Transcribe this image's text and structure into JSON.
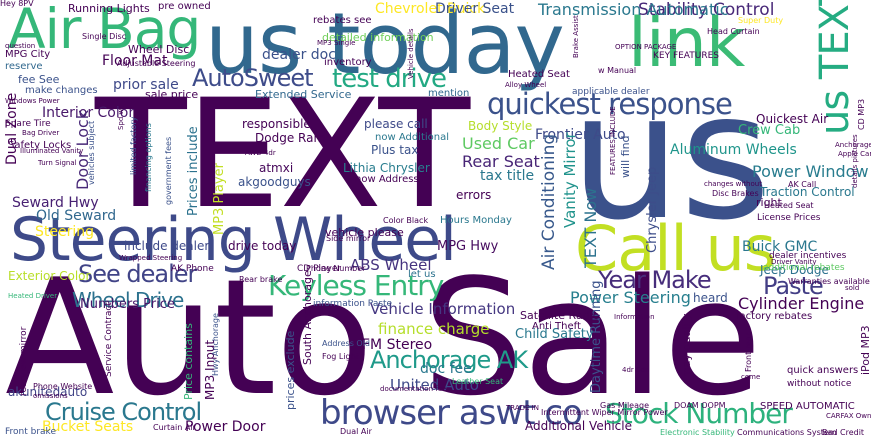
{
  "cloud": {
    "words": [
      {
        "text": "Auto Sale",
        "color": "#440154"
      },
      {
        "text": "TEXT",
        "color": "#440154"
      },
      {
        "text": "us",
        "color": "#3b518b"
      },
      {
        "text": "us today",
        "color": "#31688e"
      },
      {
        "text": "Steering Wheel",
        "color": "#3e4a89"
      },
      {
        "text": "Call us",
        "color": "#c2df23"
      },
      {
        "text": "link",
        "color": "#3bbb75"
      },
      {
        "text": "Air Bag",
        "color": "#35b779"
      },
      {
        "text": "us TEXT",
        "color": "#25ac82"
      },
      {
        "text": "browser aswt co",
        "color": "#3e4989"
      },
      {
        "text": "Cruise Control",
        "color": "#2a788e"
      },
      {
        "text": "quickest response",
        "color": "#3b528b"
      },
      {
        "text": "Keyless Entry",
        "color": "#35b779"
      },
      {
        "text": "Stock Number",
        "color": "#2db27d"
      },
      {
        "text": "AutoSweet",
        "color": "#3e4c8a"
      },
      {
        "text": "test drive",
        "color": "#23a983"
      },
      {
        "text": "See dealer",
        "color": "#414487"
      },
      {
        "text": "Anchorage AK",
        "color": "#1f9a8a"
      },
      {
        "text": "Paste",
        "color": "#433e85"
      },
      {
        "text": "Year Make",
        "color": "#472d7b"
      },
      {
        "text": "Wheel Drive",
        "color": "#2c728e"
      },
      {
        "text": "Chevrolet Buick",
        "color": "#fde725"
      },
      {
        "text": "Stability Control",
        "color": "#482878"
      },
      {
        "text": "Transmission Automatic",
        "color": "#2a788e"
      },
      {
        "text": "Driver Seat",
        "color": "#3b528b"
      },
      {
        "text": "ABS Wheel",
        "color": "#46337f"
      },
      {
        "text": "Vehicle Information",
        "color": "#453781"
      },
      {
        "text": "Power Steering",
        "color": "#277f8e"
      },
      {
        "text": "Cylinder Engine",
        "color": "#440154"
      },
      {
        "text": "Frontier Auto",
        "color": "#3e4a89"
      },
      {
        "text": "Aluminum Wheels",
        "color": "#1f958b"
      },
      {
        "text": "Power Window",
        "color": "#287c8e"
      },
      {
        "text": "Used Car",
        "color": "#5ec962"
      },
      {
        "text": "Rear Seat",
        "color": "#482576"
      },
      {
        "text": "Buick GMC",
        "color": "#2a778e"
      },
      {
        "text": "akunitedauto",
        "color": "#414487"
      },
      {
        "text": "Steering",
        "color": "#fde725"
      },
      {
        "text": "Interior Color",
        "color": "#48186a"
      },
      {
        "text": "Old Seward",
        "color": "#31688e"
      },
      {
        "text": "Seward Hwy",
        "color": "#482173"
      },
      {
        "text": "Dual Zone",
        "color": "#440154"
      },
      {
        "text": "Door Lock",
        "color": "#482878"
      },
      {
        "text": "TEXT Now",
        "color": "#2c728e"
      },
      {
        "text": "Air Conditioning",
        "color": "#38598c"
      },
      {
        "text": "Vanity Mirror",
        "color": "#20938c"
      },
      {
        "text": "finance charge",
        "color": "#b5de2b"
      },
      {
        "text": "FM Stereo",
        "color": "#440154"
      },
      {
        "text": "United Auto",
        "color": "#3e4a89"
      },
      {
        "text": "doc fee",
        "color": "#2a788e"
      },
      {
        "text": "Bucket Seats",
        "color": "#fde725"
      },
      {
        "text": "Power Door",
        "color": "#440154"
      },
      {
        "text": "dealer doc",
        "color": "#3b528b"
      },
      {
        "text": "Floor Mat",
        "color": "#440154"
      },
      {
        "text": "prior sale",
        "color": "#3e4989"
      },
      {
        "text": "tax title",
        "color": "#2a788e"
      },
      {
        "text": "MPG Hwy",
        "color": "#460b5e"
      },
      {
        "text": "Chrysler Jeep",
        "color": "#3d4d8a"
      },
      {
        "text": "Daytime Running",
        "color": "#3b528b"
      },
      {
        "text": "Child Safety",
        "color": "#2a788e"
      },
      {
        "text": "Numbers Price",
        "color": "#48186a"
      },
      {
        "text": "Exterior Color",
        "color": "#b8de29"
      },
      {
        "text": "Jeep Dodge",
        "color": "#2c728e"
      },
      {
        "text": "heard",
        "color": "#3b528b"
      },
      {
        "text": "Crew Cab",
        "color": "#35b779"
      },
      {
        "text": "responsible",
        "color": "#440154"
      },
      {
        "text": "Dodge Ram",
        "color": "#440154"
      },
      {
        "text": "please call",
        "color": "#3e4a89"
      },
      {
        "text": "atmxi",
        "color": "#46075a"
      },
      {
        "text": "akgoodguys",
        "color": "#3b528b"
      },
      {
        "text": "drive today",
        "color": "#440154"
      },
      {
        "text": "include dealer",
        "color": "#3e4989"
      },
      {
        "text": "Prices include",
        "color": "#2c728e"
      },
      {
        "text": "MP3 Player",
        "color": "#c2df23"
      },
      {
        "text": "Lithia Chrysler",
        "color": "#287d8e"
      },
      {
        "text": "Plus tax",
        "color": "#3b528b"
      },
      {
        "text": "Body Style",
        "color": "#b5de2b"
      },
      {
        "text": "sale price",
        "color": "#440154"
      },
      {
        "text": "Extended Service",
        "color": "#31688e"
      },
      {
        "text": "detailed information",
        "color": "#6ece58"
      },
      {
        "text": "inventory",
        "color": "#440154"
      },
      {
        "text": "rebates see",
        "color": "#440154"
      },
      {
        "text": "pre owned",
        "color": "#440154"
      },
      {
        "text": "Running Lights",
        "color": "#440154"
      },
      {
        "text": "Wheel Disc",
        "color": "#440154"
      },
      {
        "text": "fee See",
        "color": "#3b528b"
      },
      {
        "text": "reserve",
        "color": "#31688e"
      },
      {
        "text": "make changes",
        "color": "#3b528b"
      },
      {
        "text": "MPG City",
        "color": "#440154"
      },
      {
        "text": "Safety Locks",
        "color": "#440154"
      },
      {
        "text": "Spare Tire",
        "color": "#440154"
      },
      {
        "text": "License Prices",
        "color": "#440154"
      },
      {
        "text": "Heated Seat",
        "color": "#440154"
      },
      {
        "text": "mention",
        "color": "#31688e"
      },
      {
        "text": "applicable dealer",
        "color": "#3b528b"
      },
      {
        "text": "Quickest Air",
        "color": "#440154"
      },
      {
        "text": "will find",
        "color": "#3b528b"
      },
      {
        "text": "errors",
        "color": "#440154"
      },
      {
        "text": "vehicle please",
        "color": "#440154"
      },
      {
        "text": "now Additional",
        "color": "#2a788e"
      },
      {
        "text": "Hours Monday",
        "color": "#2a788e"
      },
      {
        "text": "now Address",
        "color": "#440154"
      },
      {
        "text": "CD Player",
        "color": "#440154"
      },
      {
        "text": "AK Phone",
        "color": "#440154"
      },
      {
        "text": "let us",
        "color": "#2c728e"
      },
      {
        "text": "Satellite Radio",
        "color": "#440154"
      },
      {
        "text": "factory rebates",
        "color": "#440154"
      },
      {
        "text": "may qualify",
        "color": "#440154"
      },
      {
        "text": "Traction Control",
        "color": "#2a788e"
      },
      {
        "text": "right",
        "color": "#440154"
      },
      {
        "text": "additional rebates",
        "color": "#5ec962"
      },
      {
        "text": "dealer incentives",
        "color": "#440154"
      },
      {
        "text": "iPod MP3",
        "color": "#440154"
      },
      {
        "text": "Additional Vehicle",
        "color": "#440154"
      },
      {
        "text": "Electronic Stability",
        "color": "#35b779"
      },
      {
        "text": "Communications System",
        "color": "#440154"
      },
      {
        "text": "Bad Credit",
        "color": "#440154"
      },
      {
        "text": "DOAM OOPM",
        "color": "#440154"
      },
      {
        "text": "SPEED AUTOMATIC",
        "color": "#440154"
      },
      {
        "text": "without notice",
        "color": "#440154"
      },
      {
        "text": "quick answers",
        "color": "#440154"
      },
      {
        "text": "MP3 Input",
        "color": "#440154"
      },
      {
        "text": "Price contains",
        "color": "#35b779"
      },
      {
        "text": "prices exclude",
        "color": "#3b528b"
      },
      {
        "text": "South Anchorage",
        "color": "#440154"
      },
      {
        "text": "information Paste",
        "color": "#3b528b"
      },
      {
        "text": "Address Old",
        "color": "#3b528b"
      },
      {
        "text": "Fog Light",
        "color": "#440154"
      },
      {
        "text": "Anti Theft",
        "color": "#440154"
      },
      {
        "text": "Leather Seat",
        "color": "#35b779"
      },
      {
        "text": "Phone Website",
        "color": "#440154"
      },
      {
        "text": "Front brake",
        "color": "#3b528b"
      },
      {
        "text": "Dual Air",
        "color": "#440154"
      },
      {
        "text": "Intermittent Wiper Mirror Power",
        "color": "#440154"
      },
      {
        "text": "Gas Mileage",
        "color": "#440154"
      },
      {
        "text": "rearview mirror",
        "color": "#440154"
      },
      {
        "text": "Service Contract",
        "color": "#440154"
      },
      {
        "text": "Hwy Anchorage",
        "color": "#3b528b"
      },
      {
        "text": "Curtain Air",
        "color": "#440154"
      },
      {
        "text": "Single Disc",
        "color": "#440154"
      },
      {
        "text": "Super Duty",
        "color": "#fde725"
      },
      {
        "text": "Head Curtain",
        "color": "#440154"
      },
      {
        "text": "KEY FEATURES",
        "color": "#440154"
      },
      {
        "text": "AK Call",
        "color": "#440154"
      },
      {
        "text": "Warranties available",
        "color": "#440154"
      },
      {
        "text": "Phone Number",
        "color": "#440154"
      },
      {
        "text": "Side mirror",
        "color": "#440154"
      },
      {
        "text": "Rear brake",
        "color": "#440154"
      },
      {
        "text": "Wrapped Steering",
        "color": "#440154"
      },
      {
        "text": "Heated Driver",
        "color": "#35b779"
      },
      {
        "text": "Color Black",
        "color": "#440154"
      },
      {
        "text": "Disc Brakes",
        "color": "#440154"
      },
      {
        "text": "Driver Vanity",
        "color": "#440154"
      },
      {
        "text": "Heated Seat",
        "color": "#440154"
      },
      {
        "text": "Anchorage Alaska",
        "color": "#440154"
      },
      {
        "text": "Apple CarPlay",
        "color": "#440154"
      },
      {
        "text": "AWD 4dr",
        "color": "#440154"
      },
      {
        "text": "MP3 Single",
        "color": "#440154"
      },
      {
        "text": "Alloy Wheel",
        "color": "#440154"
      },
      {
        "text": "OPTION PACKAGE",
        "color": "#440154"
      },
      {
        "text": "w Manual",
        "color": "#440154"
      },
      {
        "text": "Bag Driver",
        "color": "#440154"
      },
      {
        "text": "Windows Power",
        "color": "#440154"
      },
      {
        "text": "Illuminated Vanity",
        "color": "#440154"
      },
      {
        "text": "Turn Signal",
        "color": "#440154"
      },
      {
        "text": "Spd w",
        "color": "#440154"
      },
      {
        "text": "Adjustable Steering",
        "color": "#440154"
      },
      {
        "text": "limited factory",
        "color": "#3b528b"
      },
      {
        "text": "financing options",
        "color": "#2a788e"
      },
      {
        "text": "government fees",
        "color": "#3b528b"
      },
      {
        "text": "vehicles subject",
        "color": "#3b528b"
      },
      {
        "text": "FEATURES INCLUDE",
        "color": "#440154"
      },
      {
        "text": "CARFAX Owner",
        "color": "#440154"
      },
      {
        "text": "TRADE IN",
        "color": "#440154"
      },
      {
        "text": "4dr Sdn",
        "color": "#440154"
      },
      {
        "text": "come",
        "color": "#440154"
      },
      {
        "text": "CD MP3",
        "color": "#440154"
      },
      {
        "text": "details pictures",
        "color": "#440154"
      },
      {
        "text": "Information",
        "color": "#440154"
      },
      {
        "text": "documentation fee",
        "color": "#440154"
      },
      {
        "text": "omissions",
        "color": "#440154"
      },
      {
        "text": "question",
        "color": "#440154"
      },
      {
        "text": "Vehicle details",
        "color": "#440154"
      },
      {
        "text": "Brake Assist",
        "color": "#440154"
      },
      {
        "text": "Front rear",
        "color": "#440154"
      },
      {
        "text": "changes without",
        "color": "#440154"
      },
      {
        "text": "sold",
        "color": "#440154"
      },
      {
        "text": "Hey 8PV",
        "color": "#440154"
      }
    ]
  }
}
